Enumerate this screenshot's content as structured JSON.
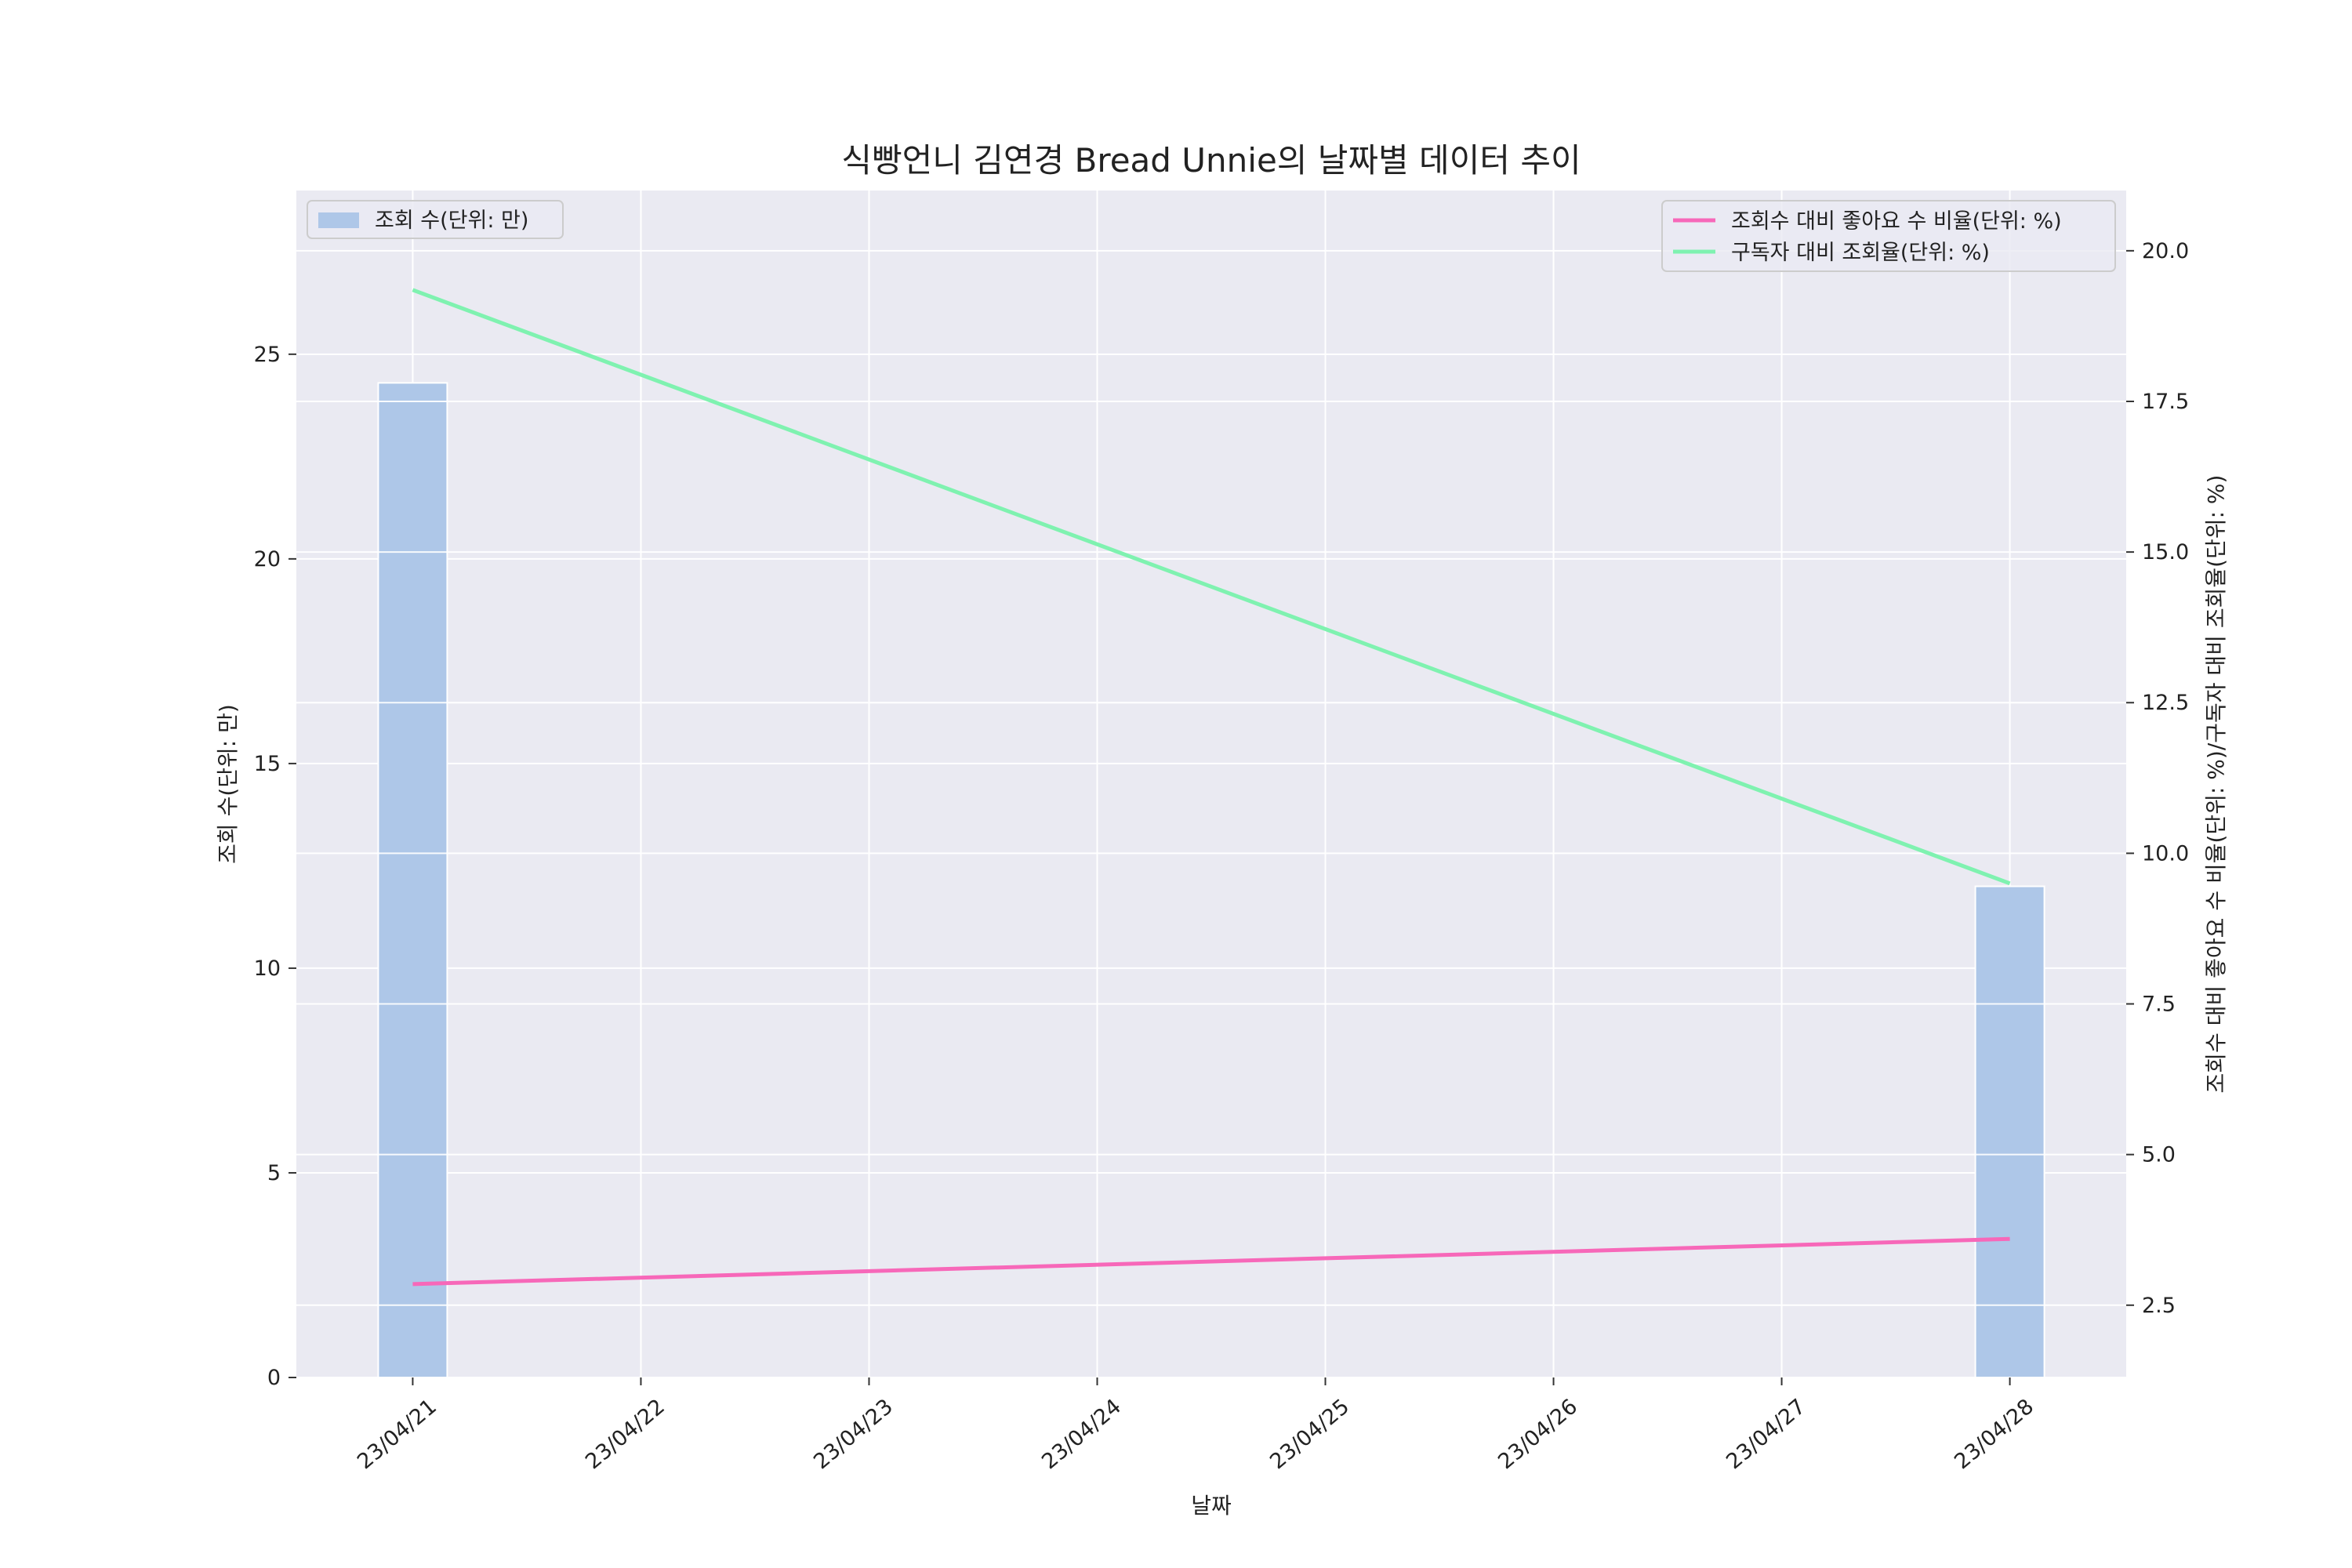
{
  "chart_data": {
    "type": "bar",
    "title": "식빵언니 김연경 Bread Unnie의 날짜별 데이터 추이",
    "xlabel": "날짜",
    "ylabel_left": "조회 수(단위: 만)",
    "ylabel_right": "조회수 대비 좋아요 수 비율(단위: %)/구독자 대비 조회율(단위: %)",
    "x_ticks": [
      "23/04/21",
      "23/04/22",
      "23/04/23",
      "23/04/24",
      "23/04/25",
      "23/04/26",
      "23/04/27",
      "23/04/28"
    ],
    "y_left_ticks": [
      "0",
      "5",
      "10",
      "15",
      "20",
      "25"
    ],
    "y_right_ticks": [
      "2.5",
      "5.0",
      "7.5",
      "10.0",
      "12.5",
      "15.0",
      "17.5",
      "20.0"
    ],
    "y_left_lim": [
      0,
      29
    ],
    "y_right_lim": [
      1.3,
      21.0
    ],
    "grid": true,
    "bar_series": {
      "name": "조회 수(단위: 만)",
      "color": "#aec7e8",
      "points": [
        {
          "x": "23/04/21",
          "value": 24.3
        },
        {
          "x": "23/04/28",
          "value": 12.0
        }
      ]
    },
    "line_series": [
      {
        "name": "조회수 대비 좋아요 수 비율(단위: %)",
        "color": "#f768b9",
        "points": [
          {
            "x": "23/04/21",
            "value": 2.85
          },
          {
            "x": "23/04/28",
            "value": 3.6
          }
        ]
      },
      {
        "name": "구독자 대비 조회율(단위: %)",
        "color": "#7ff2b0",
        "points": [
          {
            "x": "23/04/21",
            "value": 19.35
          },
          {
            "x": "23/04/28",
            "value": 9.5
          }
        ]
      }
    ],
    "legend_left_placement": "upper-left",
    "legend_right_placement": "upper-right",
    "colors": {
      "plot_background": "#eaeaf2",
      "grid": "#ffffff"
    }
  }
}
